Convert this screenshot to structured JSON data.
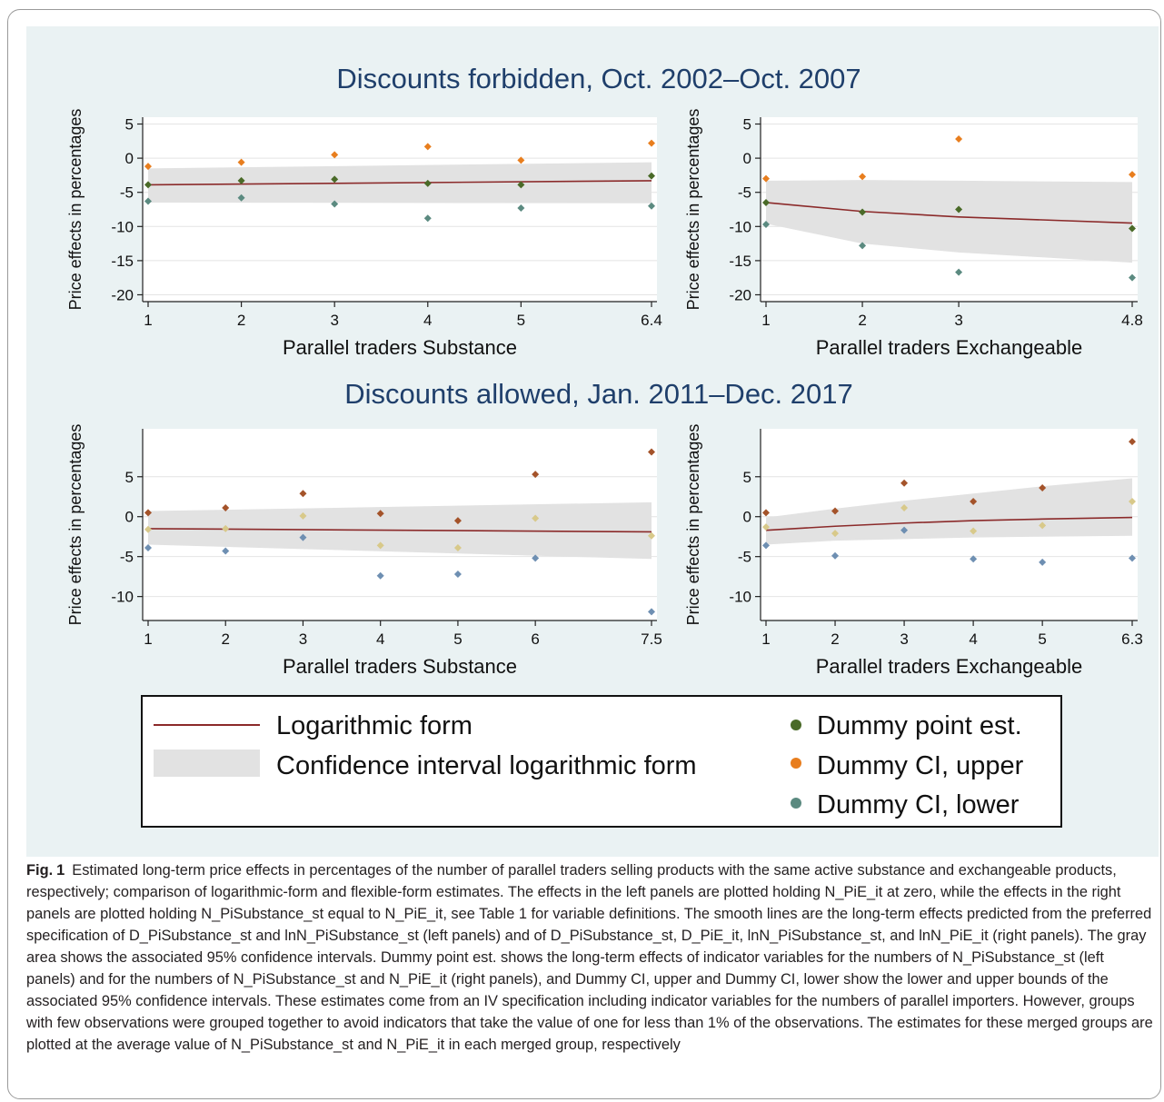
{
  "chart_data": [
    {
      "type": "scatter",
      "row_title": "Discounts forbidden, Oct. 2002–Oct. 2007",
      "xlabel": "Parallel traders Substance",
      "ylabel": "Price effects in percentages",
      "xlim": [
        1,
        6.4
      ],
      "ylim": [
        -21,
        6
      ],
      "xticks": [
        1,
        2,
        3,
        4,
        5,
        6.4
      ],
      "yticks": [
        5,
        0,
        -5,
        -10,
        -15,
        -20
      ],
      "line": {
        "x": [
          1,
          6.4
        ],
        "y": [
          -3.9,
          -3.3
        ]
      },
      "ci_band": {
        "x": [
          1,
          6.4
        ],
        "lower": [
          -6.5,
          -6.6
        ],
        "upper": [
          -1.5,
          -0.6
        ]
      },
      "series": [
        {
          "name": "Dummy point est.",
          "x": [
            1,
            2,
            3,
            4,
            5,
            6.4
          ],
          "y": [
            -3.9,
            -3.3,
            -3.1,
            -3.7,
            -3.9,
            -2.6
          ]
        },
        {
          "name": "Dummy CI, upper",
          "x": [
            1,
            2,
            3,
            4,
            5,
            6.4
          ],
          "y": [
            -1.2,
            -0.6,
            0.5,
            1.7,
            -0.3,
            2.2
          ]
        },
        {
          "name": "Dummy CI, lower",
          "x": [
            1,
            2,
            3,
            4,
            5,
            6.4
          ],
          "y": [
            -6.3,
            -5.8,
            -6.7,
            -8.8,
            -7.3,
            -7.0
          ]
        }
      ]
    },
    {
      "type": "scatter",
      "row_title": "",
      "xlabel": "Parallel traders Exchangeable",
      "ylabel": "Price effects in percentages",
      "xlim": [
        1,
        4.8
      ],
      "ylim": [
        -21,
        6
      ],
      "xticks": [
        1,
        2,
        3,
        4.8
      ],
      "yticks": [
        5,
        0,
        -5,
        -10,
        -15,
        -20
      ],
      "line": {
        "x": [
          1,
          2,
          3,
          4.8
        ],
        "y": [
          -6.5,
          -7.8,
          -8.6,
          -9.5
        ]
      },
      "ci_band": {
        "x": [
          1,
          2,
          3,
          4.8
        ],
        "lower": [
          -9.6,
          -12.5,
          -13.8,
          -15.3
        ],
        "upper": [
          -3.3,
          -3.2,
          -3.3,
          -3.5
        ]
      },
      "series": [
        {
          "name": "Dummy point est.",
          "x": [
            1,
            2,
            3,
            4.8
          ],
          "y": [
            -6.5,
            -7.9,
            -7.5,
            -10.3
          ]
        },
        {
          "name": "Dummy CI, upper",
          "x": [
            1,
            2,
            3,
            4.8
          ],
          "y": [
            -3.0,
            -2.7,
            2.8,
            -2.4
          ]
        },
        {
          "name": "Dummy CI, lower",
          "x": [
            1,
            2,
            3,
            4.8
          ],
          "y": [
            -9.7,
            -12.8,
            -16.7,
            -17.5
          ]
        }
      ]
    },
    {
      "type": "scatter",
      "row_title": "Discounts allowed, Jan. 2011–Dec. 2017",
      "xlabel": "Parallel traders Substance",
      "ylabel": "Price effects in percentages",
      "xlim": [
        1,
        7.5
      ],
      "ylim": [
        -13,
        11
      ],
      "xticks": [
        1,
        2,
        3,
        4,
        5,
        6,
        7.5
      ],
      "yticks": [
        5,
        0,
        -5,
        -10
      ],
      "line": {
        "x": [
          1,
          7.5
        ],
        "y": [
          -1.5,
          -1.9
        ]
      },
      "ci_band": {
        "x": [
          1,
          7.5
        ],
        "lower": [
          -3.5,
          -5.3
        ],
        "upper": [
          0.7,
          1.8
        ]
      },
      "series": [
        {
          "name": "Dummy point est.",
          "x": [
            1,
            2,
            3,
            4,
            5,
            6,
            7.5
          ],
          "y": [
            0.5,
            1.1,
            2.9,
            0.4,
            -0.5,
            5.3,
            8.1
          ]
        },
        {
          "name": "Dummy CI, upper",
          "x": [
            1,
            2,
            3,
            4,
            5,
            6,
            7.5
          ],
          "y": [
            -1.6,
            -1.5,
            0.1,
            -3.6,
            -3.9,
            -0.2,
            -2.4
          ]
        },
        {
          "name": "Dummy CI, lower",
          "x": [
            1,
            2,
            3,
            4,
            5,
            6,
            7.5
          ],
          "y": [
            -3.9,
            -4.3,
            -2.6,
            -7.4,
            -7.2,
            -5.2,
            -11.9
          ]
        }
      ]
    },
    {
      "type": "scatter",
      "row_title": "",
      "xlabel": "Parallel traders Exchangeable",
      "ylabel": "Price effects in percentages",
      "xlim": [
        1,
        6.3
      ],
      "ylim": [
        -13,
        11
      ],
      "xticks": [
        1,
        2,
        3,
        4,
        5,
        6.3
      ],
      "yticks": [
        5,
        0,
        -5,
        -10
      ],
      "line": {
        "x": [
          1,
          2,
          3,
          4,
          5,
          6.3
        ],
        "y": [
          -1.7,
          -1.2,
          -0.8,
          -0.5,
          -0.3,
          -0.1
        ]
      },
      "ci_band": {
        "x": [
          1,
          2,
          3,
          4,
          5,
          6.3
        ],
        "lower": [
          -3.5,
          -3.0,
          -2.8,
          -2.6,
          -2.5,
          -2.4
        ],
        "upper": [
          -0.1,
          1.0,
          2.0,
          2.9,
          3.8,
          4.8
        ]
      },
      "series": [
        {
          "name": "Dummy point est.",
          "x": [
            1,
            2,
            3,
            4,
            5,
            6.3
          ],
          "y": [
            0.5,
            0.7,
            4.2,
            1.9,
            3.6,
            9.4
          ]
        },
        {
          "name": "Dummy CI, upper",
          "x": [
            1,
            2,
            3,
            4,
            5,
            6.3
          ],
          "y": [
            -1.3,
            -2.1,
            1.1,
            -1.8,
            -1.1,
            1.9
          ]
        },
        {
          "name": "Dummy CI, lower",
          "x": [
            1,
            2,
            3,
            4,
            5,
            6.3
          ],
          "y": [
            -3.6,
            -4.9,
            -1.7,
            -5.3,
            -5.7,
            -5.2
          ]
        }
      ]
    }
  ],
  "legend": {
    "items": [
      {
        "label": "Logarithmic form",
        "kind": "line"
      },
      {
        "label": "Confidence interval logarithmic form",
        "kind": "band"
      },
      {
        "label": "Dummy point est.",
        "kind": "dot"
      },
      {
        "label": "Dummy CI, upper",
        "kind": "dot"
      },
      {
        "label": "Dummy CI, lower",
        "kind": "dot"
      }
    ]
  },
  "colors": {
    "top_point": "#4a6a28",
    "top_upper": "#e87e1e",
    "top_lower": "#5b8a80",
    "bottom_point": "#a4532a",
    "bottom_upper": "#d8c98a",
    "bottom_lower": "#6e8fb2",
    "line": "#8b2a2a",
    "band": "#e2e2e2",
    "frame_bg": "#eaf2f3",
    "title": "#1f3f6b"
  },
  "caption": {
    "label": "Fig.",
    "number": "1",
    "text": "Estimated long-term price effects in percentages of the number of parallel traders selling products with the same active substance and exchangeable products, respectively; comparison of logarithmic-form and flexible-form estimates. The effects in the left panels are plotted holding N_PiE_it at zero, while the effects in the right panels are plotted holding N_PiSubstance_st equal to N_PiE_it, see Table 1 for variable definitions. The smooth lines are the long-term effects predicted from the preferred specification of D_PiSubstance_st and lnN_PiSubstance_st (left panels) and of D_PiSubstance_st, D_PiE_it, lnN_PiSubstance_st, and lnN_PiE_it (right panels). The gray area shows the associated 95% confidence intervals. Dummy point est. shows the long-term effects of indicator variables for the numbers of N_PiSubstance_st (left panels) and for the numbers of N_PiSubstance_st and N_PiE_it (right panels), and Dummy CI, upper and Dummy CI, lower show the lower and upper bounds of the associated 95% confidence intervals. These estimates come from an IV specification including indicator variables for the numbers of parallel importers. However, groups with few observations were grouped together to avoid indicators that take the value of one for less than 1% of the observations. The estimates for these merged groups are plotted at the average value of N_PiSubstance_st and N_PiE_it in each merged group, respectively"
  }
}
